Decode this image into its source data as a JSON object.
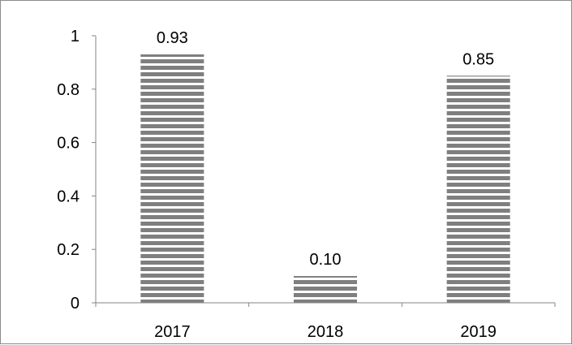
{
  "chart_data": {
    "type": "bar",
    "categories": [
      "2017",
      "2018",
      "2019"
    ],
    "values": [
      0.93,
      0.1,
      0.85
    ],
    "data_labels": [
      "0.93",
      "0.10",
      "0.85"
    ],
    "y_ticks": [
      0,
      0.2,
      0.4,
      0.6,
      0.8,
      1
    ],
    "y_tick_labels": [
      "0",
      "0.2",
      "0.4",
      "0.6",
      "0.8",
      "1"
    ],
    "ylim": [
      0,
      1
    ],
    "grid": false,
    "legend": "none",
    "bar_fill": "horizontal-stripes",
    "colors": {
      "stripe_dark": "#7f7f7f",
      "stripe_light": "#ffffff",
      "axis": "#868686",
      "text": "#000000"
    }
  }
}
